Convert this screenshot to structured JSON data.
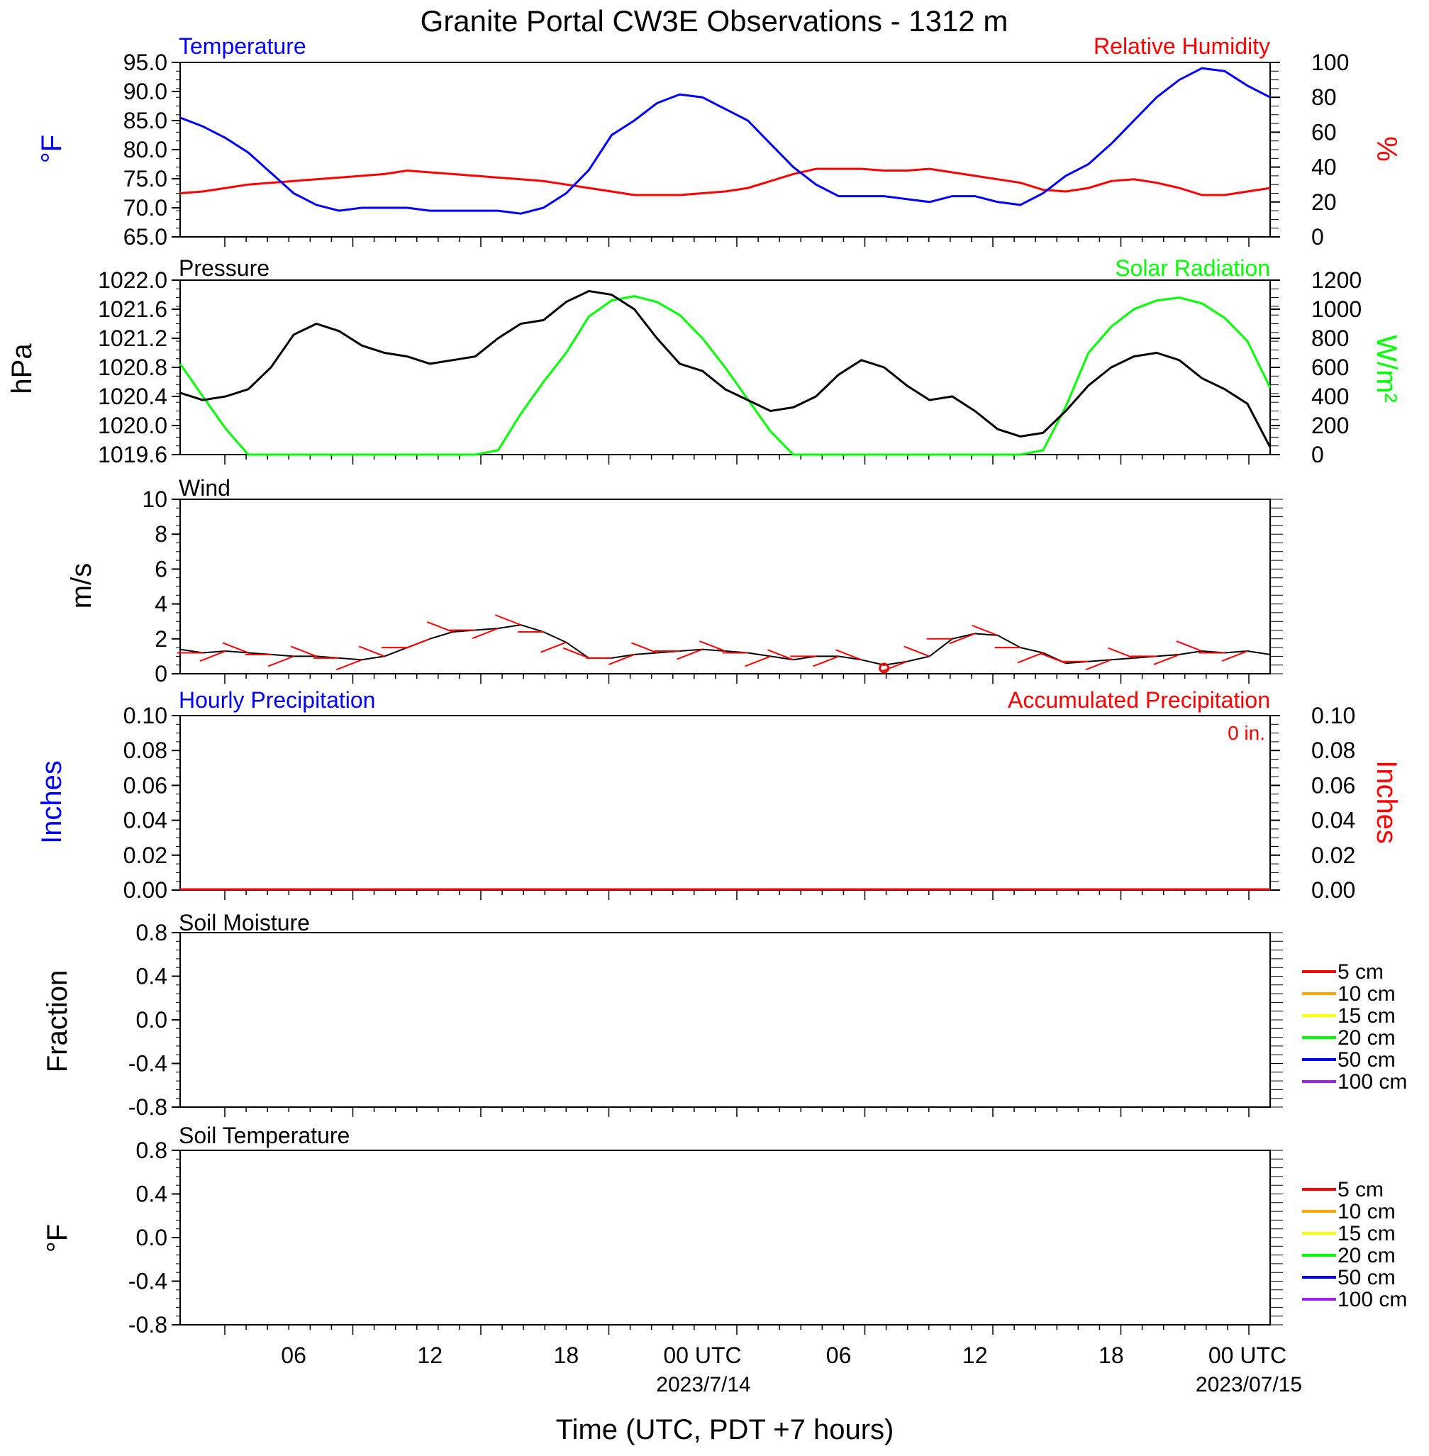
{
  "title": "Granite Portal CW3E Observations - 1312 m",
  "x_axis": {
    "ticks": [
      "06",
      "12",
      "18",
      "00 UTC",
      "06",
      "12",
      "18",
      "00 UTC"
    ],
    "dates": [
      "2023/7/14",
      "2023/07/15"
    ],
    "label": "Time (UTC, PDT +7 hours)"
  },
  "colors": {
    "temperature": "#0000ff",
    "humidity": "#ff0000",
    "pressure": "#000000",
    "solar": "#00ff00",
    "wind": "#000000",
    "barbs": "#ff0000"
  },
  "chart_data": [
    {
      "type": "line",
      "title_left": "Temperature",
      "title_right": "Relative Humidity",
      "ylabel_left": "°F",
      "ylabel_right": "%",
      "ylim_left": [
        65.0,
        95.0
      ],
      "ylim_right": [
        0,
        100
      ],
      "yticks_left": [
        "95.0",
        "90.0",
        "85.0",
        "80.0",
        "75.0",
        "70.0",
        "65.0"
      ],
      "yticks_right": [
        "100",
        "80",
        "60",
        "40",
        "20",
        "0"
      ],
      "x_hours": [
        0,
        1,
        2,
        3,
        4,
        5,
        6,
        7,
        8,
        9,
        10,
        11,
        12,
        13,
        14,
        15,
        16,
        17,
        18,
        19,
        20,
        21,
        22,
        23,
        24,
        25,
        26,
        27,
        28,
        29,
        30,
        31,
        32,
        33,
        34,
        35,
        36,
        37,
        38,
        39,
        40,
        41,
        42,
        43,
        44,
        45,
        46,
        47,
        48
      ],
      "series": [
        {
          "name": "Temperature",
          "axis": "left",
          "values": [
            85.5,
            84,
            82,
            79.5,
            76,
            72.5,
            70.5,
            69.5,
            70,
            70,
            70,
            69.5,
            69.5,
            69.5,
            69.5,
            69,
            70,
            72.5,
            76.5,
            82.5,
            85,
            88,
            89.5,
            89,
            87,
            85,
            81,
            77,
            74,
            72,
            72,
            72,
            71.5,
            71,
            72,
            72,
            71,
            70.5,
            72.5,
            75.5,
            77.5,
            81,
            85,
            89,
            92,
            94,
            93.5,
            91,
            89
          ]
        },
        {
          "name": "Relative Humidity",
          "axis": "right",
          "values": [
            25,
            26,
            28,
            30,
            31,
            32,
            33,
            34,
            35,
            36,
            38,
            37,
            36,
            35,
            34,
            33,
            32,
            30,
            28,
            26,
            24,
            24,
            24,
            25,
            26,
            28,
            32,
            36,
            39,
            39,
            39,
            38,
            38,
            39,
            37,
            35,
            33,
            31,
            27,
            26,
            28,
            32,
            33,
            31,
            28,
            24,
            24,
            26,
            28
          ]
        }
      ]
    },
    {
      "type": "line",
      "title_left": "Pressure",
      "title_right": "Solar Radiation",
      "ylabel_left": "hPa",
      "ylabel_right": "W/m²",
      "ylim_left": [
        1019.6,
        1022.0
      ],
      "ylim_right": [
        0,
        1200
      ],
      "yticks_left": [
        "1022.0",
        "1021.6",
        "1021.2",
        "1020.8",
        "1020.4",
        "1020.0",
        "1019.6"
      ],
      "yticks_right": [
        "1200",
        "1000",
        "800",
        "600",
        "400",
        "200",
        "0"
      ],
      "x_hours": [
        0,
        1,
        2,
        3,
        4,
        5,
        6,
        7,
        8,
        9,
        10,
        11,
        12,
        13,
        14,
        15,
        16,
        17,
        18,
        19,
        20,
        21,
        22,
        23,
        24,
        25,
        26,
        27,
        28,
        29,
        30,
        31,
        32,
        33,
        34,
        35,
        36,
        37,
        38,
        39,
        40,
        41,
        42,
        43,
        44,
        45,
        46,
        47,
        48
      ],
      "series": [
        {
          "name": "Pressure",
          "axis": "left",
          "values": [
            1020.45,
            1020.35,
            1020.4,
            1020.5,
            1020.8,
            1021.25,
            1021.4,
            1021.3,
            1021.1,
            1021.0,
            1020.95,
            1020.85,
            1020.9,
            1020.95,
            1021.2,
            1021.4,
            1021.45,
            1021.7,
            1021.85,
            1021.8,
            1021.6,
            1021.2,
            1020.85,
            1020.75,
            1020.5,
            1020.35,
            1020.2,
            1020.25,
            1020.4,
            1020.7,
            1020.9,
            1020.8,
            1020.55,
            1020.35,
            1020.4,
            1020.2,
            1019.95,
            1019.85,
            1019.9,
            1020.2,
            1020.55,
            1020.8,
            1020.95,
            1021.0,
            1020.9,
            1020.65,
            1020.5,
            1020.3,
            1019.7
          ]
        },
        {
          "name": "Solar Radiation",
          "axis": "right",
          "values": [
            625,
            400,
            180,
            0,
            0,
            0,
            0,
            0,
            0,
            0,
            0,
            0,
            0,
            0,
            30,
            280,
            500,
            700,
            950,
            1060,
            1090,
            1050,
            960,
            800,
            600,
            380,
            160,
            0,
            0,
            0,
            0,
            0,
            0,
            0,
            0,
            0,
            0,
            0,
            30,
            330,
            700,
            880,
            1000,
            1060,
            1080,
            1040,
            940,
            780,
            460
          ]
        }
      ]
    },
    {
      "type": "line",
      "title_left": "Wind",
      "ylabel_left": "m/s",
      "ylim_left": [
        0,
        10
      ],
      "yticks_left": [
        "10",
        "8",
        "6",
        "4",
        "2",
        "0"
      ],
      "x_hours": [
        0,
        1,
        2,
        3,
        4,
        5,
        6,
        7,
        8,
        9,
        10,
        11,
        12,
        13,
        14,
        15,
        16,
        17,
        18,
        19,
        20,
        21,
        22,
        23,
        24,
        25,
        26,
        27,
        28,
        29,
        30,
        31,
        32,
        33,
        34,
        35,
        36,
        37,
        38,
        39,
        40,
        41,
        42,
        43,
        44,
        45,
        46,
        47,
        48
      ],
      "series": [
        {
          "name": "Wind speed",
          "values": [
            1.4,
            1.2,
            1.3,
            1.2,
            1.1,
            1.0,
            1.0,
            0.9,
            0.8,
            1.0,
            1.5,
            2.0,
            2.4,
            2.5,
            2.6,
            2.8,
            2.4,
            1.8,
            0.9,
            0.9,
            1.1,
            1.2,
            1.3,
            1.4,
            1.3,
            1.2,
            1.0,
            0.8,
            1.0,
            1.0,
            0.8,
            0.5,
            0.7,
            1.0,
            2.0,
            2.3,
            2.2,
            1.5,
            1.2,
            0.6,
            0.7,
            0.8,
            0.9,
            1.0,
            1.1,
            1.3,
            1.2,
            1.3,
            1.1
          ]
        }
      ]
    },
    {
      "type": "line",
      "title_left": "Hourly Precipitation",
      "title_right": "Accumulated Precipitation",
      "annotation": "0 in.",
      "ylabel_left": "Inches",
      "ylabel_right": "Inches",
      "ylim_left": [
        0,
        0.1
      ],
      "ylim_right": [
        0,
        0.1
      ],
      "yticks_left": [
        "0.10",
        "0.08",
        "0.06",
        "0.04",
        "0.02",
        "0.00"
      ],
      "yticks_right": [
        "0.10",
        "0.08",
        "0.06",
        "0.04",
        "0.02",
        "0.00"
      ],
      "series": [
        {
          "name": "Hourly Precipitation",
          "values": [
            0
          ]
        },
        {
          "name": "Accumulated Precipitation",
          "values": [
            0
          ]
        }
      ]
    },
    {
      "type": "line",
      "title_left": "Soil Moisture",
      "ylabel_left": "Fraction",
      "yticks_left": [
        "0.8",
        "0.4",
        "0.0",
        "-0.4",
        "-0.8"
      ],
      "legend": [
        "5 cm",
        "10 cm",
        "15 cm",
        "20 cm",
        "50 cm",
        "100 cm"
      ],
      "legend_colors": [
        "#ff0000",
        "#ffa500",
        "#ffff00",
        "#00ff00",
        "#0000ff",
        "#a020f0"
      ],
      "series": []
    },
    {
      "type": "line",
      "title_left": "Soil Temperature",
      "ylabel_left": "°F",
      "yticks_left": [
        "0.8",
        "0.4",
        "0.0",
        "-0.4",
        "-0.8"
      ],
      "legend": [
        "5 cm",
        "10 cm",
        "15 cm",
        "20 cm",
        "50 cm",
        "100 cm"
      ],
      "legend_colors": [
        "#ff0000",
        "#ffa500",
        "#ffff00",
        "#00ff00",
        "#0000ff",
        "#a020f0"
      ],
      "series": []
    }
  ]
}
